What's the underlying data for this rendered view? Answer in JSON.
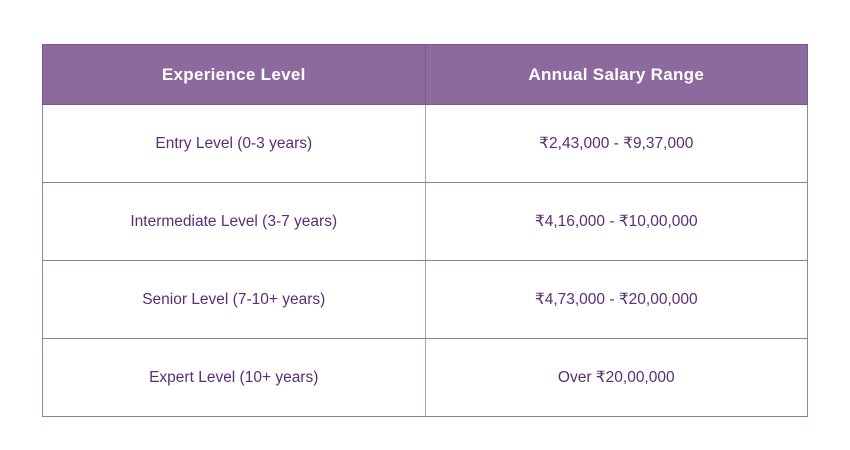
{
  "table": {
    "headers": [
      "Experience Level",
      "Annual Salary Range"
    ],
    "rows": [
      {
        "level": "Entry Level (0-3 years)",
        "salary": "₹2,43,000 - ₹9,37,000"
      },
      {
        "level": "Intermediate Level (3-7 years)",
        "salary": "₹4,16,000 - ₹10,00,000"
      },
      {
        "level": "Senior Level (7-10+ years)",
        "salary": "₹4,73,000 - ₹20,00,000"
      },
      {
        "level": "Expert Level (10+ years)",
        "salary": "Over ₹20,00,000"
      }
    ]
  },
  "colors": {
    "header_bg": "#8D6A9E",
    "header_text": "#FFFFFF",
    "body_text": "#5B2D74",
    "border": "#9577A8",
    "background": "#FFFFFF"
  },
  "chart_data": {
    "type": "table",
    "title": "",
    "columns": [
      "Experience Level",
      "Annual Salary Range"
    ],
    "rows": [
      [
        "Entry Level (0-3 years)",
        "₹2,43,000 - ₹9,37,000"
      ],
      [
        "Intermediate Level (3-7 years)",
        "₹4,16,000 - ₹10,00,000"
      ],
      [
        "Senior Level (7-10+ years)",
        "₹4,73,000 - ₹20,00,000"
      ],
      [
        "Expert Level (10+ years)",
        "Over ₹20,00,000"
      ]
    ]
  }
}
